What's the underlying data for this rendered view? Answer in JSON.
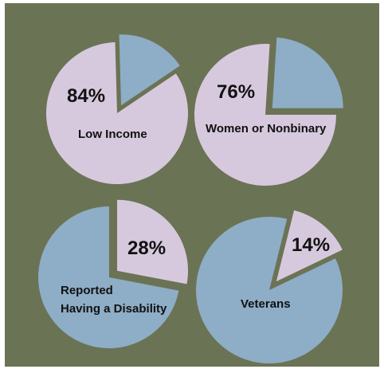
{
  "colors": {
    "background": "#6b7355",
    "lavender": "#d7c9dd",
    "blue": "#8eadc6"
  },
  "chart_data": [
    {
      "type": "pie",
      "title": "",
      "slices": [
        {
          "label": "Low Income",
          "value": 84,
          "color": "#d7c9dd"
        },
        {
          "label": "",
          "value": 16,
          "color": "#8eadc6",
          "exploded": true
        }
      ],
      "annotations": [
        "84%",
        "Low Income"
      ]
    },
    {
      "type": "pie",
      "title": "",
      "slices": [
        {
          "label": "Women or Nonbinary",
          "value": 76,
          "color": "#d7c9dd"
        },
        {
          "label": "",
          "value": 24,
          "color": "#8eadc6",
          "exploded": true
        }
      ],
      "annotations": [
        "76%",
        "Women or Nonbinary"
      ]
    },
    {
      "type": "pie",
      "title": "",
      "slices": [
        {
          "label": "Reported Having a Disability",
          "value": 28,
          "color": "#d7c9dd",
          "exploded": true
        },
        {
          "label": "",
          "value": 72,
          "color": "#8eadc6"
        }
      ],
      "annotations": [
        "28%",
        "Reported",
        "Having a Disability"
      ]
    },
    {
      "type": "pie",
      "title": "",
      "slices": [
        {
          "label": "Veterans",
          "value": 14,
          "color": "#d7c9dd",
          "exploded": true
        },
        {
          "label": "",
          "value": 86,
          "color": "#8eadc6"
        }
      ],
      "annotations": [
        "14%",
        "Veterans"
      ]
    }
  ]
}
